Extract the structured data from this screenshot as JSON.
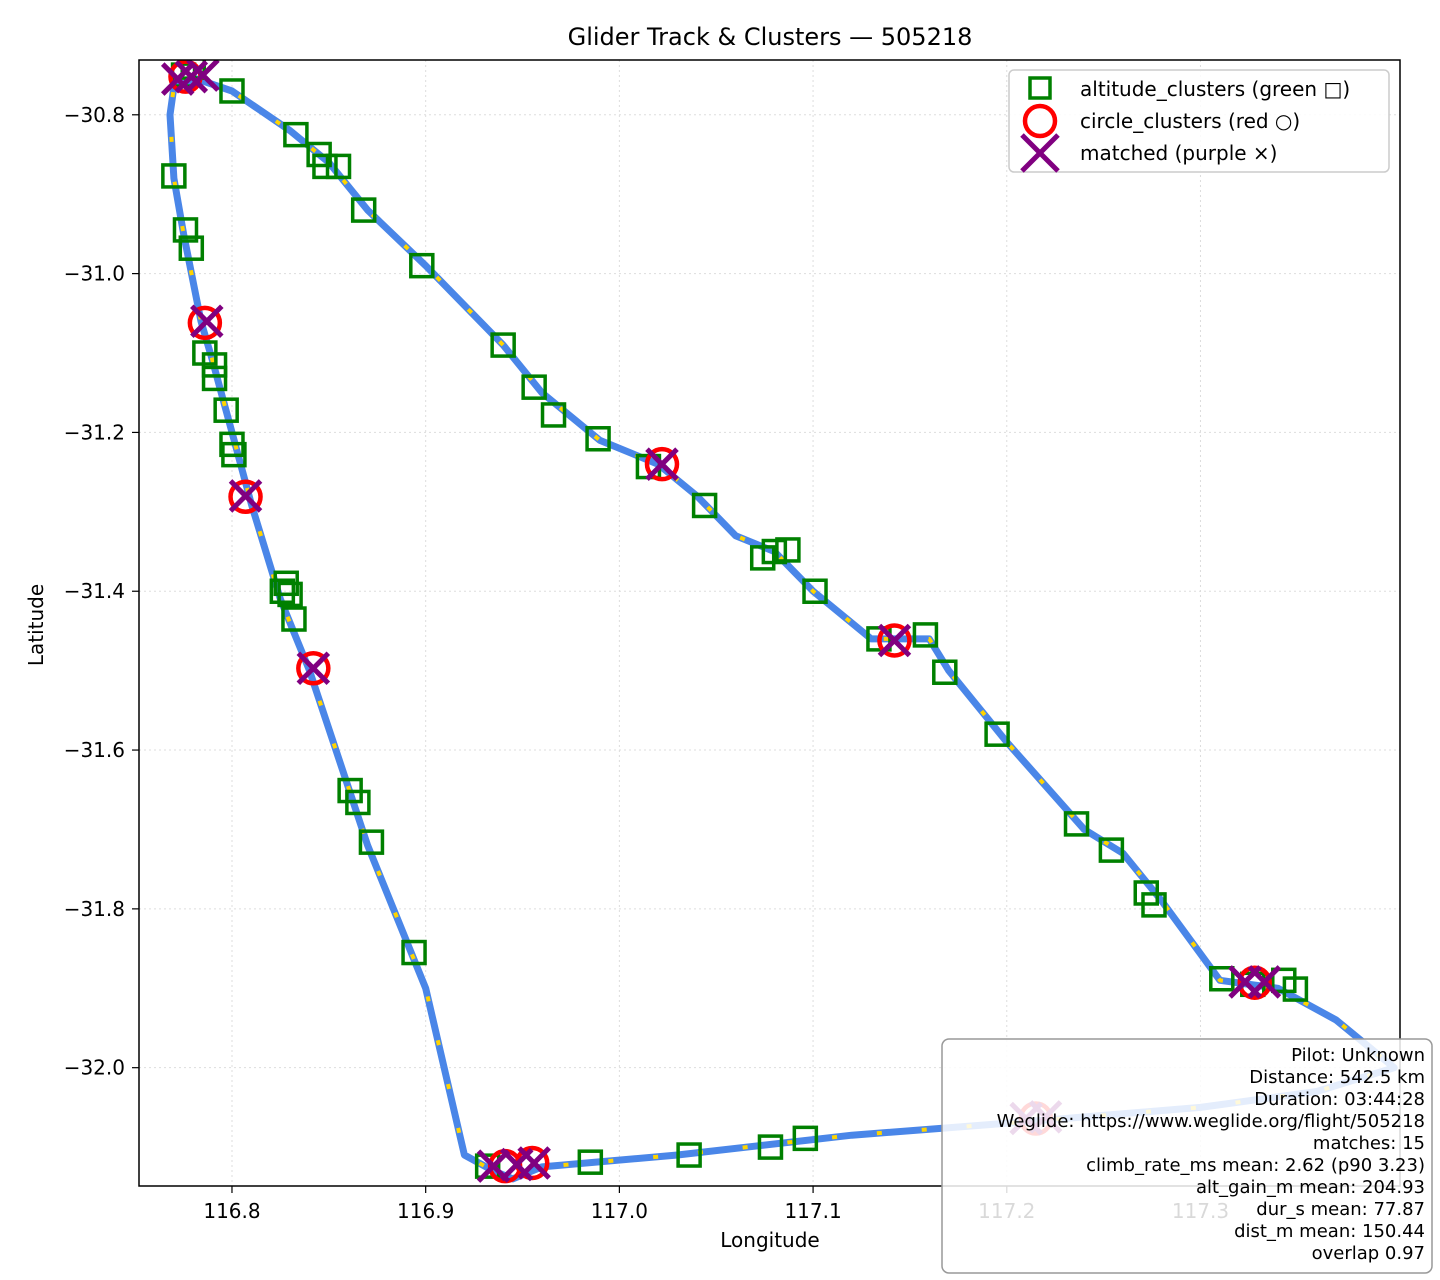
{
  "chart_data": {
    "type": "scatter",
    "title": "Glider Track & Clusters — 505218",
    "xlabel": "Longitude",
    "ylabel": "Latitude",
    "xlim": [
      116.752,
      117.403
    ],
    "ylim": [
      -32.149,
      -30.731
    ],
    "xticks": [
      116.8,
      116.9,
      117.0,
      117.1,
      117.2,
      117.3
    ],
    "xtick_labels": [
      "116.8",
      "116.9",
      "117.0",
      "117.1",
      "117.2",
      "117.3"
    ],
    "yticks": [
      -30.8,
      -31.0,
      -31.2,
      -31.4,
      -31.6,
      -31.8,
      -32.0
    ],
    "ytick_labels": [
      "−30.8",
      "−31.0",
      "−31.2",
      "−31.4",
      "−31.6",
      "−31.8",
      "−32.0"
    ],
    "grid": true,
    "legend_position": "top-right",
    "colors": {
      "track": "#4a86e8",
      "track_highlight": "#ffd400",
      "altitude_clusters": "#008000",
      "circle_clusters": "#ff0000",
      "matched": "#800080"
    },
    "legend": [
      {
        "label": "altitude_clusters (green □)",
        "marker": "square",
        "color": "#008000"
      },
      {
        "label": "circle_clusters (red ○)",
        "marker": "circle",
        "color": "#ff0000"
      },
      {
        "label": "matched (purple ×)",
        "marker": "x",
        "color": "#800080"
      }
    ],
    "track": [
      [
        116.782,
        -30.755
      ],
      [
        116.8,
        -30.77
      ],
      [
        116.83,
        -30.82
      ],
      [
        116.85,
        -30.86
      ],
      [
        116.87,
        -30.92
      ],
      [
        116.9,
        -30.99
      ],
      [
        116.94,
        -31.09
      ],
      [
        116.96,
        -31.15
      ],
      [
        116.99,
        -31.21
      ],
      [
        117.02,
        -31.24
      ],
      [
        117.04,
        -31.28
      ],
      [
        117.06,
        -31.33
      ],
      [
        117.08,
        -31.35
      ],
      [
        117.1,
        -31.4
      ],
      [
        117.13,
        -31.46
      ],
      [
        117.16,
        -31.46
      ],
      [
        117.17,
        -31.5
      ],
      [
        117.2,
        -31.59
      ],
      [
        117.24,
        -31.7
      ],
      [
        117.26,
        -31.73
      ],
      [
        117.28,
        -31.79
      ],
      [
        117.31,
        -31.89
      ],
      [
        117.34,
        -31.9
      ],
      [
        117.37,
        -31.94
      ],
      [
        117.4,
        -32.0
      ],
      [
        117.36,
        -32.03
      ],
      [
        117.3,
        -32.05
      ],
      [
        117.2,
        -32.07
      ],
      [
        117.12,
        -32.085
      ],
      [
        117.03,
        -32.11
      ],
      [
        116.96,
        -32.125
      ],
      [
        116.945,
        -32.14
      ],
      [
        116.935,
        -32.13
      ],
      [
        116.92,
        -32.11
      ],
      [
        116.9,
        -31.9
      ],
      [
        116.87,
        -31.72
      ],
      [
        116.84,
        -31.5
      ],
      [
        116.825,
        -31.41
      ],
      [
        116.81,
        -31.29
      ],
      [
        116.8,
        -31.2
      ],
      [
        116.79,
        -31.11
      ],
      [
        116.784,
        -31.06
      ],
      [
        116.775,
        -30.95
      ],
      [
        116.77,
        -30.88
      ],
      [
        116.768,
        -30.8
      ],
      [
        116.77,
        -30.765
      ],
      [
        116.782,
        -30.755
      ]
    ],
    "altitude_clusters": [
      [
        116.8,
        -30.77
      ],
      [
        116.833,
        -30.825
      ],
      [
        116.845,
        -30.85
      ],
      [
        116.848,
        -30.865
      ],
      [
        116.855,
        -30.865
      ],
      [
        116.868,
        -30.92
      ],
      [
        116.898,
        -30.99
      ],
      [
        116.94,
        -31.09
      ],
      [
        116.956,
        -31.143
      ],
      [
        116.966,
        -31.178
      ],
      [
        116.989,
        -31.208
      ],
      [
        117.015,
        -31.243
      ],
      [
        117.044,
        -31.292
      ],
      [
        117.074,
        -31.358
      ],
      [
        117.08,
        -31.35
      ],
      [
        117.087,
        -31.348
      ],
      [
        117.101,
        -31.4
      ],
      [
        117.134,
        -31.46
      ],
      [
        117.158,
        -31.455
      ],
      [
        117.168,
        -31.502
      ],
      [
        117.195,
        -31.58
      ],
      [
        117.236,
        -31.693
      ],
      [
        117.254,
        -31.726
      ],
      [
        117.272,
        -31.78
      ],
      [
        117.276,
        -31.795
      ],
      [
        117.311,
        -31.888
      ],
      [
        117.327,
        -31.895
      ],
      [
        117.343,
        -31.89
      ],
      [
        117.349,
        -31.901
      ],
      [
        117.096,
        -32.089
      ],
      [
        117.078,
        -32.1
      ],
      [
        117.036,
        -32.11
      ],
      [
        116.985,
        -32.119
      ],
      [
        116.932,
        -32.124
      ],
      [
        116.894,
        -31.855
      ],
      [
        116.872,
        -31.716
      ],
      [
        116.865,
        -31.666
      ],
      [
        116.861,
        -31.651
      ],
      [
        116.832,
        -31.435
      ],
      [
        116.83,
        -31.404
      ],
      [
        116.826,
        -31.4
      ],
      [
        116.828,
        -31.39
      ],
      [
        116.801,
        -31.228
      ],
      [
        116.8,
        -31.215
      ],
      [
        116.797,
        -31.172
      ],
      [
        116.791,
        -31.132
      ],
      [
        116.791,
        -31.115
      ],
      [
        116.786,
        -31.1
      ],
      [
        116.779,
        -30.968
      ],
      [
        116.776,
        -30.945
      ],
      [
        116.77,
        -30.877
      ],
      [
        116.78,
        -30.74
      ],
      [
        116.775,
        -30.75
      ]
    ],
    "circle_clusters": [
      [
        116.776,
        -30.752
      ],
      [
        116.786,
        -31.062
      ],
      [
        116.807,
        -31.281
      ],
      [
        116.842,
        -31.497
      ],
      [
        117.022,
        -31.24
      ],
      [
        117.142,
        -31.462
      ],
      [
        117.328,
        -31.893
      ],
      [
        116.941,
        -32.124
      ],
      [
        116.955,
        -32.12
      ],
      [
        117.215,
        -32.064
      ]
    ],
    "matched": [
      [
        116.772,
        -30.755
      ],
      [
        116.785,
        -30.75
      ],
      [
        116.787,
        -31.06
      ],
      [
        116.807,
        -31.28
      ],
      [
        116.842,
        -31.497
      ],
      [
        117.022,
        -31.24
      ],
      [
        117.142,
        -31.462
      ],
      [
        117.323,
        -31.892
      ],
      [
        117.333,
        -31.892
      ],
      [
        116.935,
        -32.124
      ],
      [
        116.947,
        -32.122
      ],
      [
        116.956,
        -32.12
      ],
      [
        117.21,
        -32.064
      ],
      [
        117.22,
        -32.062
      ],
      [
        116.779,
        -30.752
      ]
    ],
    "info_box": [
      "Pilot: Unknown",
      "Distance: 542.5 km",
      "Duration: 03:44:28",
      "Weglide: https://www.weglide.org/flight/505218",
      "matches: 15",
      "climb_rate_ms mean: 2.62 (p90 3.23)",
      "alt_gain_m mean: 204.93",
      "dur_s mean: 77.87",
      "dist_m mean: 150.44",
      "overlap 0.97"
    ]
  }
}
